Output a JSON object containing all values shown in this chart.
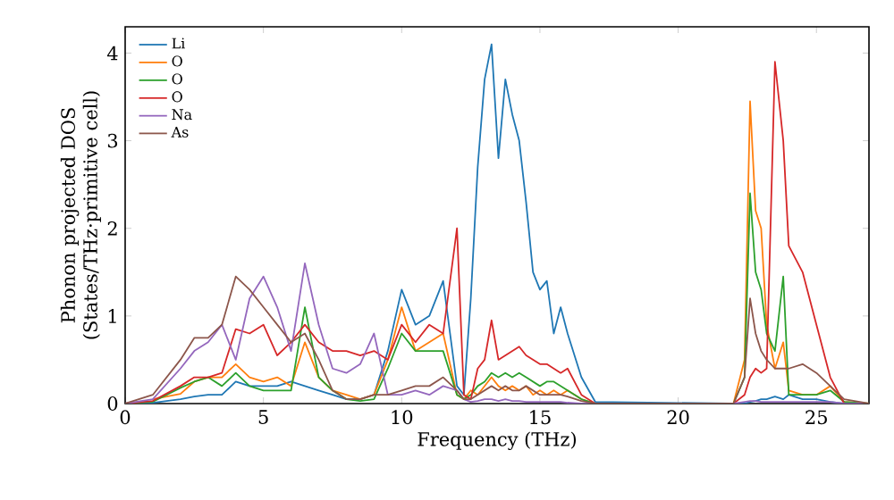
{
  "chart_data": {
    "type": "line",
    "xlabel": "Frequency (THz)",
    "ylabel": "Phonon projected DOS (States/THz·primitive cell)",
    "xlim": [
      0,
      26.9
    ],
    "ylim": [
      0,
      4.3
    ],
    "xticks": [
      0,
      5,
      10,
      15,
      20,
      25
    ],
    "yticks": [
      0,
      1,
      2,
      3,
      4
    ],
    "legend": "top left",
    "line_style": "solid",
    "x": [
      0,
      1,
      2,
      2.5,
      3,
      3.5,
      4,
      4.5,
      5,
      5.5,
      6,
      6.5,
      7,
      7.5,
      8,
      8.5,
      9,
      9.5,
      10,
      10.5,
      11,
      11.5,
      12,
      12.25,
      12.5,
      12.75,
      13,
      13.25,
      13.5,
      13.75,
      14,
      14.25,
      14.5,
      14.75,
      15,
      15.25,
      15.5,
      15.75,
      16,
      16.5,
      17,
      22,
      22.4,
      22.6,
      22.8,
      23,
      23.2,
      23.5,
      23.8,
      24,
      24.5,
      25,
      25.5,
      26,
      26.9
    ],
    "series": [
      {
        "name": "Li",
        "color": "#1f77b4",
        "values": [
          0,
          0.01,
          0.05,
          0.08,
          0.1,
          0.1,
          0.25,
          0.2,
          0.2,
          0.2,
          0.25,
          0.2,
          0.15,
          0.1,
          0.05,
          0.05,
          0.1,
          0.6,
          1.3,
          0.9,
          1.0,
          1.4,
          0.2,
          0.1,
          1.2,
          2.7,
          3.7,
          4.1,
          2.8,
          3.7,
          3.3,
          3.0,
          2.3,
          1.5,
          1.3,
          1.4,
          0.8,
          1.1,
          0.8,
          0.3,
          0.02,
          0,
          0,
          0.02,
          0.03,
          0.05,
          0.05,
          0.08,
          0.05,
          0.1,
          0.05,
          0.05,
          0.02,
          0,
          0
        ]
      },
      {
        "name": "O",
        "color": "#ff7f0e",
        "values": [
          null,
          0.05,
          0.11,
          0.25,
          0.3,
          0.3,
          0.45,
          0.3,
          0.25,
          0.3,
          0.2,
          0.7,
          0.3,
          0.15,
          0.1,
          0.05,
          0.1,
          0.5,
          1.1,
          0.6,
          0.7,
          0.8,
          0.1,
          0.05,
          0.15,
          0.1,
          0.2,
          0.3,
          0.2,
          0.15,
          0.2,
          0.15,
          0.2,
          0.1,
          0.15,
          0.1,
          0.15,
          0.1,
          0.15,
          0.05,
          0,
          0,
          0.5,
          3.45,
          2.2,
          2.0,
          0.9,
          0.4,
          0.7,
          0.15,
          0.1,
          0.1,
          0.2,
          0.02,
          0
        ]
      },
      {
        "name": "O",
        "color": "#2ca02c",
        "values": [
          0,
          0.02,
          0.18,
          0.25,
          0.3,
          0.2,
          0.35,
          0.2,
          0.15,
          0.15,
          0.15,
          1.1,
          0.3,
          0.15,
          0.05,
          0.03,
          0.05,
          0.4,
          0.8,
          0.6,
          0.6,
          0.6,
          0.1,
          0.05,
          0.1,
          0.2,
          0.25,
          0.35,
          0.3,
          0.35,
          0.3,
          0.35,
          0.3,
          0.25,
          0.2,
          0.25,
          0.25,
          0.2,
          0.15,
          0.05,
          0,
          0,
          0.3,
          2.4,
          1.5,
          1.3,
          0.8,
          0.6,
          1.45,
          0.1,
          0.1,
          0.1,
          0.15,
          0.02,
          0
        ]
      },
      {
        "name": "O",
        "color": "#d62728",
        "values": [
          0,
          0.03,
          0.2,
          0.3,
          0.3,
          0.35,
          0.85,
          0.8,
          0.9,
          0.55,
          0.7,
          0.9,
          0.7,
          0.6,
          0.6,
          0.55,
          0.6,
          0.5,
          0.9,
          0.7,
          0.9,
          0.8,
          2.0,
          0.1,
          0.05,
          0.4,
          0.5,
          0.95,
          0.5,
          0.55,
          0.6,
          0.65,
          0.55,
          0.5,
          0.45,
          0.45,
          0.4,
          0.35,
          0.4,
          0.1,
          0,
          0,
          0.1,
          0.3,
          0.4,
          0.35,
          0.4,
          3.9,
          3.0,
          1.8,
          1.5,
          0.9,
          0.3,
          0,
          0
        ]
      },
      {
        "name": "Na",
        "color": "#9467bd",
        "values": [
          0,
          0.05,
          0.4,
          0.6,
          0.7,
          0.9,
          0.5,
          1.2,
          1.45,
          1.1,
          0.6,
          1.6,
          0.9,
          0.4,
          0.35,
          0.45,
          0.8,
          0.1,
          0.1,
          0.15,
          0.1,
          0.2,
          0.15,
          0.05,
          0.02,
          0.03,
          0.05,
          0.05,
          0.03,
          0.05,
          0.03,
          0.03,
          0.02,
          0.02,
          0.02,
          0.02,
          0.02,
          0.02,
          0.01,
          0,
          0,
          0,
          0.02,
          0.03,
          0.03,
          0.02,
          0.02,
          0.02,
          0.02,
          0.02,
          0.02,
          0.02,
          0.02,
          0,
          0
        ]
      },
      {
        "name": "As",
        "color": "#8c564b",
        "values": [
          0,
          0.1,
          0.5,
          0.75,
          0.75,
          0.9,
          1.45,
          1.3,
          1.1,
          0.9,
          0.7,
          0.8,
          0.5,
          0.15,
          0.05,
          0.05,
          0.1,
          0.1,
          0.15,
          0.2,
          0.2,
          0.3,
          0.15,
          0.05,
          0.05,
          0.1,
          0.15,
          0.2,
          0.15,
          0.2,
          0.15,
          0.15,
          0.2,
          0.15,
          0.1,
          0.1,
          0.1,
          0.1,
          0.08,
          0.03,
          0,
          0,
          0.3,
          1.2,
          0.8,
          0.6,
          0.5,
          0.4,
          0.4,
          0.4,
          0.45,
          0.35,
          0.2,
          0.05,
          0
        ]
      }
    ]
  }
}
